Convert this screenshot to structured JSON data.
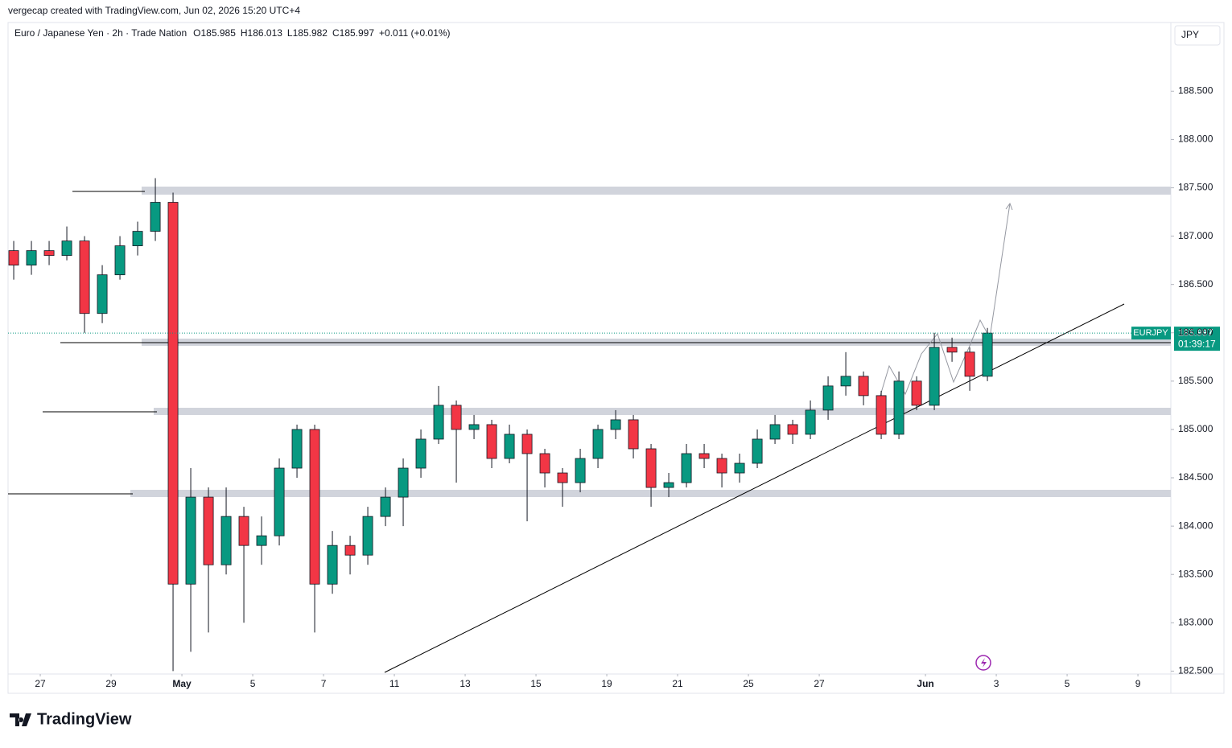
{
  "header": {
    "credit": "vergecap created with TradingView.com, Jun 02, 2026 15:20 UTC+4",
    "symbol": "Euro / Japanese Yen · 2h · Trade Nation",
    "ohlc": [
      "O185.985",
      "H186.013",
      "L185.982",
      "C185.997",
      "+0.011 (+0.01%)"
    ],
    "currency": "JPY",
    "ticker": "EURJPY",
    "last_price": "185.997",
    "countdown": "01:39:17"
  },
  "footer": {
    "logo": "TradingView"
  },
  "chart_data": {
    "type": "candlestick",
    "up_color": "#089981",
    "down_color": "#f23645",
    "x": [
      -0.75,
      -0.25,
      0.25,
      0.75,
      1.25,
      1.75,
      2.25,
      2.75,
      3.25,
      3.75,
      4.25,
      4.75,
      5.25,
      5.75,
      6.25,
      6.75,
      7.25,
      7.75,
      8.25,
      8.75,
      9.25,
      9.75,
      10.25,
      10.75,
      11.25,
      11.75,
      12.25,
      12.75,
      13.25,
      13.75,
      14.25,
      14.75,
      15.25,
      15.75,
      16.25,
      16.75,
      17.25,
      17.75,
      18.25,
      18.75,
      19.25,
      19.75,
      20.25,
      20.75,
      21.25,
      21.75,
      22.25,
      22.75,
      23.25,
      23.75,
      24.25,
      24.75,
      25.25,
      25.75,
      26.25,
      26.75
    ],
    "open": [
      186.85,
      186.7,
      186.85,
      186.8,
      186.95,
      186.2,
      186.6,
      186.9,
      187.05,
      187.35,
      183.4,
      184.3,
      183.6,
      184.1,
      183.8,
      183.9,
      184.6,
      185.0,
      183.4,
      183.8,
      183.7,
      184.1,
      184.3,
      184.6,
      184.9,
      185.25,
      185.0,
      185.05,
      184.7,
      184.95,
      184.75,
      184.55,
      184.45,
      184.7,
      185.0,
      185.1,
      184.8,
      184.4,
      184.45,
      184.75,
      184.7,
      184.55,
      184.65,
      184.9,
      185.05,
      184.95,
      185.2,
      185.45,
      185.55,
      185.35,
      184.95,
      185.5,
      185.25,
      185.85,
      185.8,
      185.55
    ],
    "high": [
      186.95,
      186.95,
      186.95,
      187.1,
      187.0,
      186.7,
      187.0,
      187.15,
      187.6,
      187.45,
      184.6,
      184.4,
      184.4,
      184.2,
      184.1,
      184.7,
      185.05,
      185.05,
      183.95,
      183.9,
      184.2,
      184.4,
      184.7,
      185.0,
      185.45,
      185.3,
      185.15,
      185.1,
      185.05,
      185.0,
      184.8,
      184.6,
      184.8,
      185.05,
      185.2,
      185.15,
      184.85,
      184.55,
      184.85,
      184.85,
      184.75,
      184.75,
      185.0,
      185.15,
      185.1,
      185.3,
      185.55,
      185.8,
      185.6,
      185.4,
      185.6,
      185.55,
      186.0,
      185.95,
      185.85,
      186.05
    ],
    "low": [
      186.55,
      186.6,
      186.7,
      186.75,
      186.0,
      186.1,
      186.55,
      186.8,
      186.95,
      182.5,
      182.7,
      182.9,
      183.5,
      183.0,
      183.6,
      183.8,
      184.5,
      182.9,
      183.3,
      183.5,
      183.6,
      184.0,
      184.0,
      184.5,
      184.85,
      184.45,
      184.9,
      184.6,
      184.65,
      184.05,
      184.4,
      184.2,
      184.35,
      184.6,
      184.9,
      184.7,
      184.2,
      184.3,
      184.4,
      184.6,
      184.4,
      184.45,
      184.6,
      184.85,
      184.85,
      184.9,
      185.1,
      185.35,
      185.25,
      184.9,
      184.9,
      185.2,
      185.2,
      185.7,
      185.4,
      185.5
    ],
    "close": [
      186.7,
      186.85,
      186.8,
      186.95,
      186.2,
      186.6,
      186.9,
      187.05,
      187.35,
      183.4,
      184.3,
      183.6,
      184.1,
      183.8,
      183.9,
      184.6,
      185.0,
      183.4,
      183.8,
      183.7,
      184.1,
      184.3,
      184.6,
      184.9,
      185.25,
      185.0,
      185.05,
      184.7,
      184.95,
      184.75,
      184.55,
      184.45,
      184.7,
      185.0,
      185.1,
      184.8,
      184.4,
      184.45,
      184.75,
      184.7,
      184.55,
      184.65,
      184.9,
      185.05,
      184.95,
      185.2,
      185.45,
      185.55,
      185.35,
      184.95,
      185.5,
      185.25,
      185.85,
      185.8,
      185.55,
      185.997
    ],
    "xlim": [
      -0.91,
      31.93
    ],
    "xticks": [
      {
        "value": 0,
        "label": "27"
      },
      {
        "value": 2,
        "label": "29"
      },
      {
        "value": 4,
        "label": "May"
      },
      {
        "value": 6,
        "label": "5"
      },
      {
        "value": 8,
        "label": "7"
      },
      {
        "value": 10,
        "label": "11"
      },
      {
        "value": 12,
        "label": "13"
      },
      {
        "value": 14,
        "label": "15"
      },
      {
        "value": 16,
        "label": "19"
      },
      {
        "value": 18,
        "label": "21"
      },
      {
        "value": 20,
        "label": "25"
      },
      {
        "value": 22,
        "label": "27"
      },
      {
        "value": 25,
        "label": "Jun"
      },
      {
        "value": 27,
        "label": "3"
      },
      {
        "value": 29,
        "label": "5"
      },
      {
        "value": 31,
        "label": "9"
      }
    ],
    "ylim": [
      182.47,
      189.21
    ],
    "yticks": [
      {
        "value": 182.5,
        "label": "182.500"
      },
      {
        "value": 183,
        "label": "183.000"
      },
      {
        "value": 183.5,
        "label": "183.500"
      },
      {
        "value": 184,
        "label": "184.000"
      },
      {
        "value": 184.5,
        "label": "184.500"
      },
      {
        "value": 185,
        "label": "185.000"
      },
      {
        "value": 185.5,
        "label": "185.500"
      },
      {
        "value": 186,
        "label": "186.000"
      },
      {
        "value": 186.5,
        "label": "186.500"
      },
      {
        "value": 187,
        "label": "187.000"
      },
      {
        "value": 187.5,
        "label": "187.500"
      },
      {
        "value": 188,
        "label": "188.000"
      },
      {
        "value": 188.5,
        "label": "188.500"
      }
    ]
  }
}
